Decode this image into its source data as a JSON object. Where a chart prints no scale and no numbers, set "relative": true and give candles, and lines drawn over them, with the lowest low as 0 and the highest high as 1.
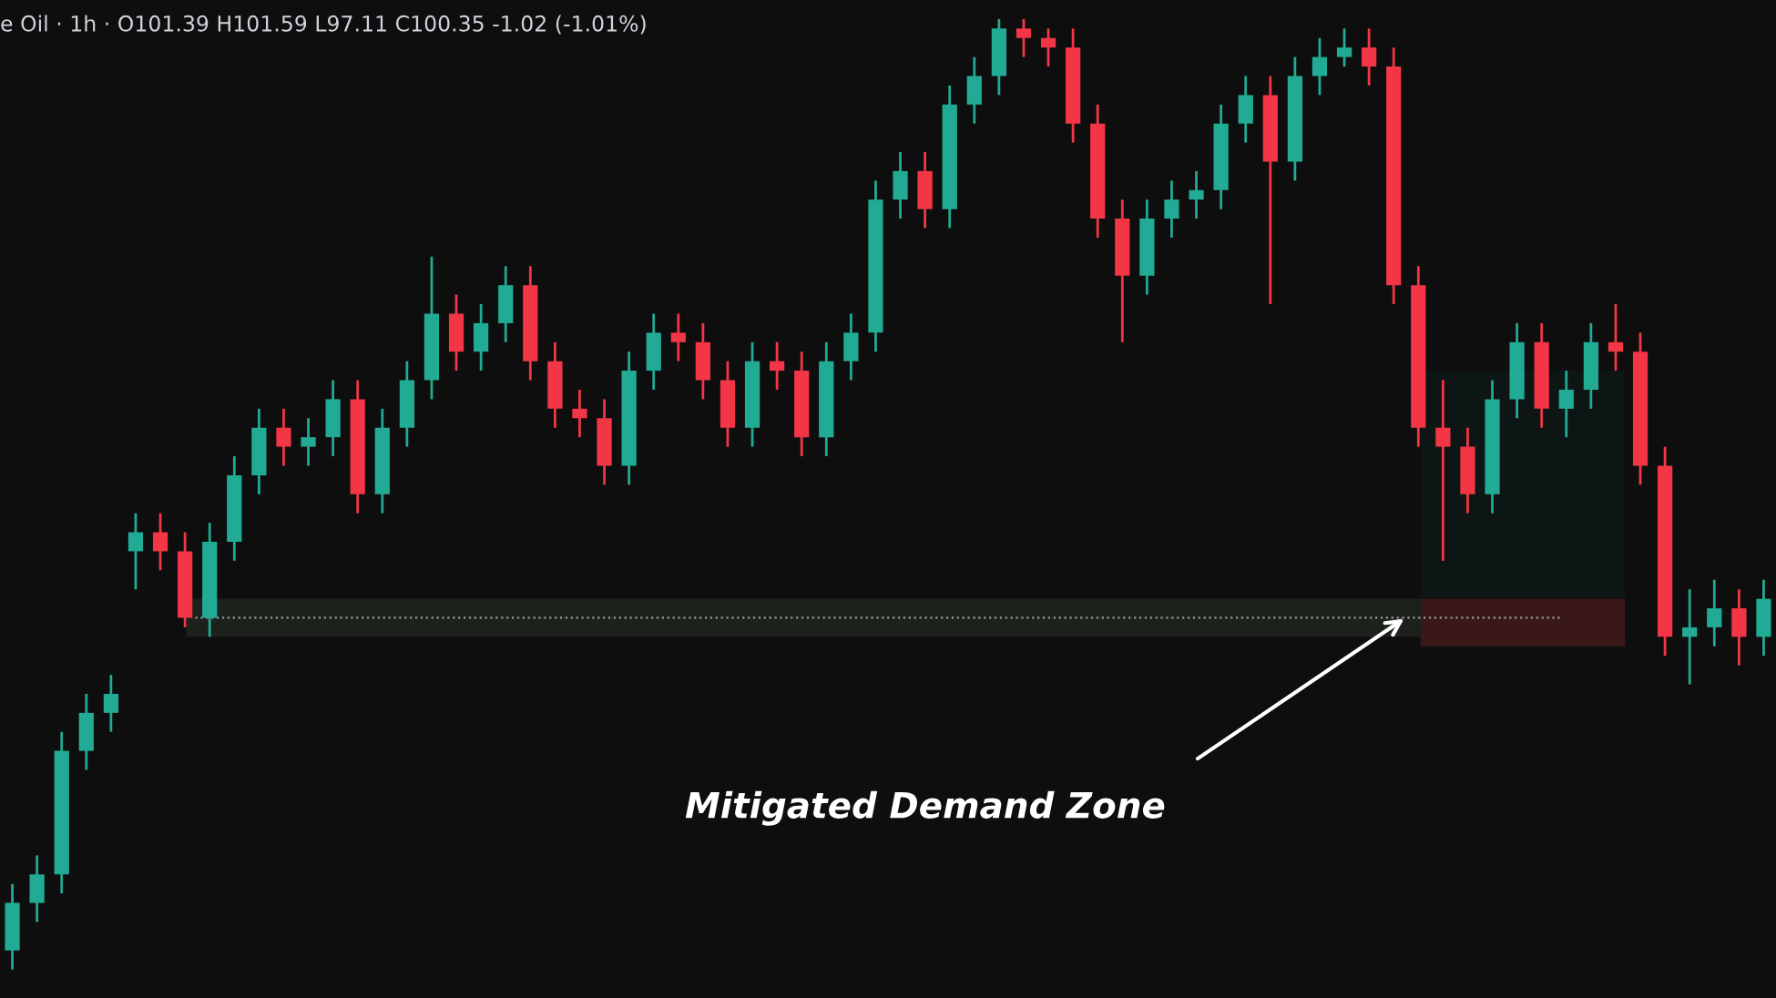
{
  "chart_data": {
    "type": "candlestick",
    "relative": true,
    "annotations": [
      "e Oil · 1h · O101.39 H101.59 L97.11 C100.35 -1.02 (-1.01%)",
      "Mitigated Demand Zone"
    ],
    "categories": [
      null,
      null,
      null,
      null,
      null,
      null,
      null,
      null,
      null,
      null,
      null,
      null,
      null,
      null,
      null,
      null,
      null,
      null,
      null,
      null,
      null,
      null,
      null,
      null,
      null,
      null,
      null,
      null,
      null,
      null,
      null,
      null,
      null,
      null,
      null,
      null,
      null,
      null,
      null,
      null,
      null,
      null,
      null,
      null,
      null,
      null,
      null,
      null,
      null,
      null,
      null,
      null,
      null,
      null,
      null,
      null,
      null,
      null,
      null,
      null,
      null,
      null,
      null,
      null,
      null,
      null,
      null,
      null,
      null,
      null,
      null,
      null
    ],
    "ohlc": [
      [
        0.02,
        0.09,
        0.0,
        0.07
      ],
      [
        0.07,
        0.12,
        0.05,
        0.1
      ],
      [
        0.1,
        0.25,
        0.08,
        0.23
      ],
      [
        0.23,
        0.29,
        0.21,
        0.27
      ],
      [
        0.27,
        0.31,
        0.25,
        0.29
      ],
      [
        0.44,
        0.48,
        0.4,
        0.46
      ],
      [
        0.46,
        0.48,
        0.42,
        0.44
      ],
      [
        0.44,
        0.46,
        0.36,
        0.37
      ],
      [
        0.37,
        0.47,
        0.35,
        0.45
      ],
      [
        0.45,
        0.54,
        0.43,
        0.52
      ],
      [
        0.52,
        0.59,
        0.5,
        0.57
      ],
      [
        0.57,
        0.59,
        0.53,
        0.55
      ],
      [
        0.55,
        0.58,
        0.53,
        0.56
      ],
      [
        0.56,
        0.62,
        0.54,
        0.6
      ],
      [
        0.6,
        0.62,
        0.48,
        0.5
      ],
      [
        0.5,
        0.59,
        0.48,
        0.57
      ],
      [
        0.57,
        0.64,
        0.55,
        0.62
      ],
      [
        0.62,
        0.75,
        0.6,
        0.69
      ],
      [
        0.69,
        0.71,
        0.63,
        0.65
      ],
      [
        0.65,
        0.7,
        0.63,
        0.68
      ],
      [
        0.68,
        0.74,
        0.66,
        0.72
      ],
      [
        0.72,
        0.74,
        0.62,
        0.64
      ],
      [
        0.64,
        0.66,
        0.57,
        0.59
      ],
      [
        0.59,
        0.61,
        0.56,
        0.58
      ],
      [
        0.58,
        0.6,
        0.51,
        0.53
      ],
      [
        0.53,
        0.65,
        0.51,
        0.63
      ],
      [
        0.63,
        0.69,
        0.61,
        0.67
      ],
      [
        0.67,
        0.69,
        0.64,
        0.66
      ],
      [
        0.66,
        0.68,
        0.6,
        0.62
      ],
      [
        0.62,
        0.64,
        0.55,
        0.57
      ],
      [
        0.57,
        0.66,
        0.55,
        0.64
      ],
      [
        0.64,
        0.66,
        0.61,
        0.63
      ],
      [
        0.63,
        0.65,
        0.54,
        0.56
      ],
      [
        0.56,
        0.66,
        0.54,
        0.64
      ],
      [
        0.64,
        0.69,
        0.62,
        0.67
      ],
      [
        0.67,
        0.83,
        0.65,
        0.81
      ],
      [
        0.81,
        0.86,
        0.79,
        0.84
      ],
      [
        0.84,
        0.86,
        0.78,
        0.8
      ],
      [
        0.8,
        0.93,
        0.78,
        0.91
      ],
      [
        0.91,
        0.96,
        0.89,
        0.94
      ],
      [
        0.94,
        1.0,
        0.92,
        0.99
      ],
      [
        0.99,
        1.0,
        0.96,
        0.98
      ],
      [
        0.98,
        0.99,
        0.95,
        0.97
      ],
      [
        0.97,
        0.99,
        0.87,
        0.89
      ],
      [
        0.89,
        0.91,
        0.77,
        0.79
      ],
      [
        0.79,
        0.81,
        0.66,
        0.73
      ],
      [
        0.73,
        0.81,
        0.71,
        0.79
      ],
      [
        0.79,
        0.83,
        0.77,
        0.81
      ],
      [
        0.81,
        0.84,
        0.79,
        0.82
      ],
      [
        0.82,
        0.91,
        0.8,
        0.89
      ],
      [
        0.89,
        0.94,
        0.87,
        0.92
      ],
      [
        0.92,
        0.94,
        0.7,
        0.85
      ],
      [
        0.85,
        0.96,
        0.83,
        0.94
      ],
      [
        0.94,
        0.98,
        0.92,
        0.96
      ],
      [
        0.96,
        0.99,
        0.95,
        0.97
      ],
      [
        0.97,
        0.99,
        0.93,
        0.95
      ],
      [
        0.95,
        0.97,
        0.7,
        0.72
      ],
      [
        0.72,
        0.74,
        0.55,
        0.57
      ],
      [
        0.57,
        0.62,
        0.43,
        0.55
      ],
      [
        0.55,
        0.57,
        0.48,
        0.5
      ],
      [
        0.5,
        0.62,
        0.48,
        0.6
      ],
      [
        0.6,
        0.68,
        0.58,
        0.66
      ],
      [
        0.66,
        0.68,
        0.57,
        0.59
      ],
      [
        0.59,
        0.63,
        0.56,
        0.61
      ],
      [
        0.61,
        0.68,
        0.59,
        0.66
      ],
      [
        0.66,
        0.7,
        0.63,
        0.65
      ],
      [
        0.65,
        0.67,
        0.51,
        0.53
      ],
      [
        0.53,
        0.55,
        0.33,
        0.35
      ],
      [
        0.35,
        0.4,
        0.3,
        0.36
      ],
      [
        0.36,
        0.41,
        0.34,
        0.38
      ],
      [
        0.38,
        0.4,
        0.32,
        0.35
      ],
      [
        0.35,
        0.41,
        0.33,
        0.39
      ]
    ],
    "bands": [
      {
        "axis": "y",
        "from": 0.35,
        "to": 0.39,
        "color": "#1c211b"
      },
      {
        "axis": "y",
        "from": 0.34,
        "to": 0.39,
        "color": "#3a1819"
      },
      {
        "axis": "y",
        "from": 0.39,
        "to": 0.63,
        "color": "#0d1614"
      }
    ],
    "ref_lines": [
      {
        "axis": "y",
        "value": 0.37,
        "line_style": "dotted",
        "color": "#9a9a9a"
      }
    ]
  }
}
